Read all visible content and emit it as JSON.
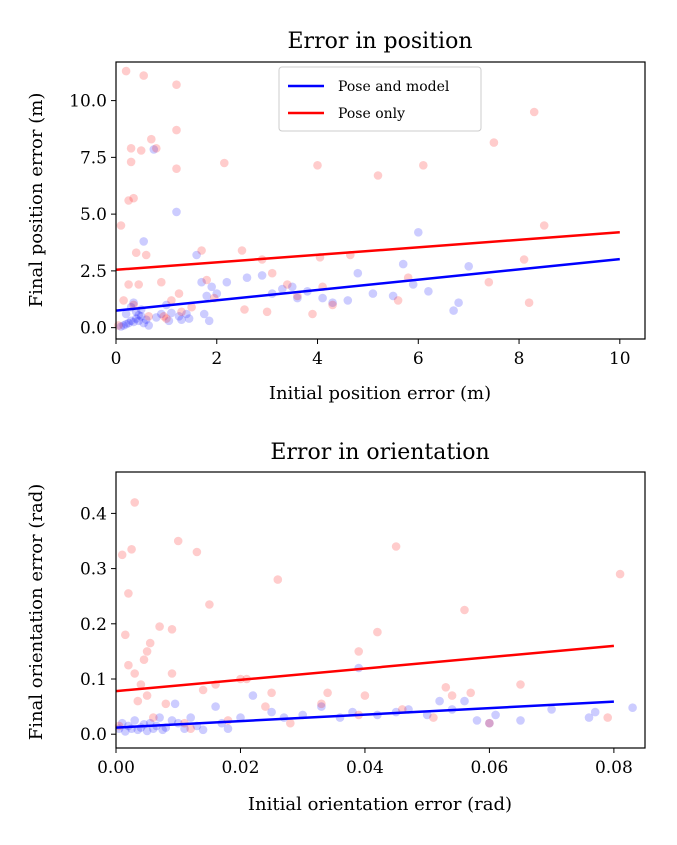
{
  "chart_data": [
    {
      "type": "scatter",
      "title": "Error in position",
      "xlabel": "Initial position error (m)",
      "ylabel": "Final position error (m)",
      "xlim": [
        0,
        10.5
      ],
      "ylim": [
        -0.5,
        11.7
      ],
      "xticks": [
        0,
        2,
        4,
        6,
        8,
        10
      ],
      "xtick_labels": [
        "0",
        "2",
        "4",
        "6",
        "8",
        "10"
      ],
      "yticks": [
        0,
        2.5,
        5,
        7.5,
        10
      ],
      "ytick_labels": [
        "0.0",
        "2.5",
        "5.0",
        "7.5",
        "10.0"
      ],
      "legend": {
        "position": "top-center",
        "entries": [
          "Pose and model",
          "Pose only"
        ]
      },
      "series": [
        {
          "name": "Pose and model",
          "color": "#0000ff",
          "fit_line": [
            [
              0,
              0.75
            ],
            [
              10,
              3.02
            ]
          ],
          "points": [
            [
              0.1,
              0.05
            ],
            [
              0.15,
              0.1
            ],
            [
              0.2,
              0.15
            ],
            [
              0.25,
              0.2
            ],
            [
              0.3,
              0.3
            ],
            [
              0.35,
              0.25
            ],
            [
              0.4,
              0.4
            ],
            [
              0.45,
              0.3
            ],
            [
              0.5,
              0.5
            ],
            [
              0.55,
              0.2
            ],
            [
              0.6,
              0.35
            ],
            [
              0.65,
              0.1
            ],
            [
              0.2,
              0.6
            ],
            [
              0.3,
              0.9
            ],
            [
              0.35,
              1.1
            ],
            [
              0.4,
              0.7
            ],
            [
              0.45,
              0.55
            ],
            [
              0.5,
              0.8
            ],
            [
              0.55,
              3.8
            ],
            [
              0.75,
              7.85
            ],
            [
              0.8,
              0.45
            ],
            [
              0.9,
              0.6
            ],
            [
              1.0,
              1.0
            ],
            [
              1.05,
              0.3
            ],
            [
              1.1,
              0.65
            ],
            [
              1.2,
              5.1
            ],
            [
              1.25,
              0.5
            ],
            [
              1.3,
              0.35
            ],
            [
              1.4,
              0.6
            ],
            [
              1.45,
              0.4
            ],
            [
              1.6,
              3.2
            ],
            [
              1.7,
              2.0
            ],
            [
              1.75,
              0.6
            ],
            [
              1.8,
              1.4
            ],
            [
              1.85,
              0.3
            ],
            [
              1.9,
              1.8
            ],
            [
              2.0,
              1.5
            ],
            [
              2.2,
              2.0
            ],
            [
              2.6,
              2.2
            ],
            [
              2.9,
              2.3
            ],
            [
              3.1,
              1.5
            ],
            [
              3.3,
              1.7
            ],
            [
              3.5,
              1.8
            ],
            [
              3.6,
              1.3
            ],
            [
              3.8,
              1.6
            ],
            [
              4.1,
              1.3
            ],
            [
              4.3,
              1.1
            ],
            [
              4.6,
              1.2
            ],
            [
              4.8,
              2.4
            ],
            [
              5.1,
              1.5
            ],
            [
              5.5,
              1.4
            ],
            [
              5.7,
              2.8
            ],
            [
              5.9,
              1.9
            ],
            [
              6.0,
              4.2
            ],
            [
              6.2,
              1.6
            ],
            [
              6.7,
              0.75
            ],
            [
              6.8,
              1.1
            ],
            [
              7.0,
              2.7
            ]
          ]
        },
        {
          "name": "Pose only",
          "color": "#ff0000",
          "fit_line": [
            [
              0,
              2.55
            ],
            [
              10,
              4.2
            ]
          ],
          "points": [
            [
              0.05,
              0.1
            ],
            [
              0.1,
              4.5
            ],
            [
              0.15,
              1.2
            ],
            [
              0.2,
              11.3
            ],
            [
              0.25,
              1.9
            ],
            [
              0.25,
              5.6
            ],
            [
              0.3,
              7.3
            ],
            [
              0.3,
              7.9
            ],
            [
              0.35,
              5.7
            ],
            [
              0.35,
              1.0
            ],
            [
              0.4,
              3.3
            ],
            [
              0.45,
              1.9
            ],
            [
              0.5,
              7.8
            ],
            [
              0.55,
              11.1
            ],
            [
              0.6,
              3.2
            ],
            [
              0.65,
              0.5
            ],
            [
              0.7,
              8.3
            ],
            [
              0.8,
              7.9
            ],
            [
              0.9,
              2.0
            ],
            [
              0.95,
              0.5
            ],
            [
              1.0,
              0.4
            ],
            [
              1.1,
              1.2
            ],
            [
              1.2,
              10.7
            ],
            [
              1.2,
              8.7
            ],
            [
              1.2,
              7.0
            ],
            [
              1.25,
              1.5
            ],
            [
              1.3,
              0.7
            ],
            [
              1.5,
              0.9
            ],
            [
              1.7,
              3.4
            ],
            [
              1.8,
              2.1
            ],
            [
              1.95,
              1.3
            ],
            [
              2.15,
              7.25
            ],
            [
              2.5,
              3.4
            ],
            [
              2.55,
              0.8
            ],
            [
              2.9,
              3.0
            ],
            [
              3.0,
              0.7
            ],
            [
              3.1,
              2.4
            ],
            [
              3.4,
              1.9
            ],
            [
              3.6,
              1.4
            ],
            [
              3.9,
              0.6
            ],
            [
              4.0,
              7.15
            ],
            [
              4.05,
              3.1
            ],
            [
              4.1,
              1.8
            ],
            [
              4.3,
              1.0
            ],
            [
              4.65,
              3.2
            ],
            [
              5.2,
              6.7
            ],
            [
              5.6,
              1.2
            ],
            [
              5.8,
              2.2
            ],
            [
              6.1,
              7.15
            ],
            [
              7.5,
              8.15
            ],
            [
              7.4,
              2.0
            ],
            [
              8.2,
              1.1
            ],
            [
              8.3,
              9.5
            ],
            [
              8.5,
              4.5
            ],
            [
              8.1,
              3.0
            ]
          ]
        }
      ]
    },
    {
      "type": "scatter",
      "title": "Error in orientation",
      "xlabel": "Initial orientation error (rad)",
      "ylabel": "Final orientation error (rad)",
      "xlim": [
        0,
        0.085
      ],
      "ylim": [
        -0.025,
        0.475
      ],
      "xticks": [
        0,
        0.02,
        0.04,
        0.06,
        0.08
      ],
      "xtick_labels": [
        "0.00",
        "0.02",
        "0.04",
        "0.06",
        "0.08"
      ],
      "yticks": [
        0,
        0.1,
        0.2,
        0.3,
        0.4
      ],
      "ytick_labels": [
        "0.0",
        "0.1",
        "0.2",
        "0.3",
        "0.4"
      ],
      "series": [
        {
          "name": "Pose and model",
          "color": "#0000ff",
          "fit_line": [
            [
              0,
              0.012
            ],
            [
              0.08,
              0.059
            ]
          ],
          "points": [
            [
              0.0005,
              0.01
            ],
            [
              0.001,
              0.02
            ],
            [
              0.0015,
              0.005
            ],
            [
              0.002,
              0.015
            ],
            [
              0.0025,
              0.01
            ],
            [
              0.003,
              0.025
            ],
            [
              0.0035,
              0.008
            ],
            [
              0.004,
              0.012
            ],
            [
              0.0045,
              0.018
            ],
            [
              0.005,
              0.006
            ],
            [
              0.0055,
              0.02
            ],
            [
              0.006,
              0.01
            ],
            [
              0.0065,
              0.015
            ],
            [
              0.007,
              0.03
            ],
            [
              0.0075,
              0.008
            ],
            [
              0.008,
              0.012
            ],
            [
              0.009,
              0.025
            ],
            [
              0.0095,
              0.055
            ],
            [
              0.01,
              0.02
            ],
            [
              0.011,
              0.01
            ],
            [
              0.012,
              0.03
            ],
            [
              0.013,
              0.015
            ],
            [
              0.014,
              0.008
            ],
            [
              0.016,
              0.05
            ],
            [
              0.017,
              0.02
            ],
            [
              0.018,
              0.01
            ],
            [
              0.02,
              0.03
            ],
            [
              0.022,
              0.07
            ],
            [
              0.025,
              0.04
            ],
            [
              0.027,
              0.03
            ],
            [
              0.03,
              0.035
            ],
            [
              0.033,
              0.05
            ],
            [
              0.036,
              0.03
            ],
            [
              0.038,
              0.04
            ],
            [
              0.039,
              0.12
            ],
            [
              0.042,
              0.035
            ],
            [
              0.045,
              0.04
            ],
            [
              0.047,
              0.045
            ],
            [
              0.05,
              0.035
            ],
            [
              0.052,
              0.06
            ],
            [
              0.054,
              0.045
            ],
            [
              0.056,
              0.06
            ],
            [
              0.058,
              0.025
            ],
            [
              0.06,
              0.02
            ],
            [
              0.061,
              0.035
            ],
            [
              0.065,
              0.025
            ],
            [
              0.07,
              0.045
            ],
            [
              0.076,
              0.03
            ],
            [
              0.077,
              0.04
            ],
            [
              0.083,
              0.048
            ]
          ]
        },
        {
          "name": "Pose only",
          "color": "#ff0000",
          "fit_line": [
            [
              0,
              0.078
            ],
            [
              0.08,
              0.16
            ]
          ],
          "points": [
            [
              0.0005,
              0.015
            ],
            [
              0.001,
              0.325
            ],
            [
              0.0015,
              0.18
            ],
            [
              0.002,
              0.125
            ],
            [
              0.002,
              0.255
            ],
            [
              0.0025,
              0.335
            ],
            [
              0.003,
              0.42
            ],
            [
              0.003,
              0.11
            ],
            [
              0.0035,
              0.06
            ],
            [
              0.004,
              0.09
            ],
            [
              0.0045,
              0.135
            ],
            [
              0.005,
              0.15
            ],
            [
              0.005,
              0.07
            ],
            [
              0.0055,
              0.165
            ],
            [
              0.006,
              0.03
            ],
            [
              0.007,
              0.195
            ],
            [
              0.008,
              0.055
            ],
            [
              0.009,
              0.19
            ],
            [
              0.009,
              0.11
            ],
            [
              0.01,
              0.35
            ],
            [
              0.011,
              0.02
            ],
            [
              0.012,
              0.01
            ],
            [
              0.013,
              0.33
            ],
            [
              0.014,
              0.08
            ],
            [
              0.015,
              0.235
            ],
            [
              0.016,
              0.09
            ],
            [
              0.018,
              0.025
            ],
            [
              0.02,
              0.1
            ],
            [
              0.021,
              0.1
            ],
            [
              0.024,
              0.05
            ],
            [
              0.025,
              0.075
            ],
            [
              0.026,
              0.28
            ],
            [
              0.028,
              0.02
            ],
            [
              0.033,
              0.055
            ],
            [
              0.034,
              0.075
            ],
            [
              0.039,
              0.035
            ],
            [
              0.039,
              0.15
            ],
            [
              0.04,
              0.07
            ],
            [
              0.042,
              0.185
            ],
            [
              0.045,
              0.34
            ],
            [
              0.046,
              0.045
            ],
            [
              0.051,
              0.03
            ],
            [
              0.053,
              0.085
            ],
            [
              0.054,
              0.07
            ],
            [
              0.056,
              0.225
            ],
            [
              0.057,
              0.075
            ],
            [
              0.06,
              0.02
            ],
            [
              0.065,
              0.09
            ],
            [
              0.079,
              0.03
            ],
            [
              0.081,
              0.29
            ]
          ]
        }
      ]
    }
  ]
}
